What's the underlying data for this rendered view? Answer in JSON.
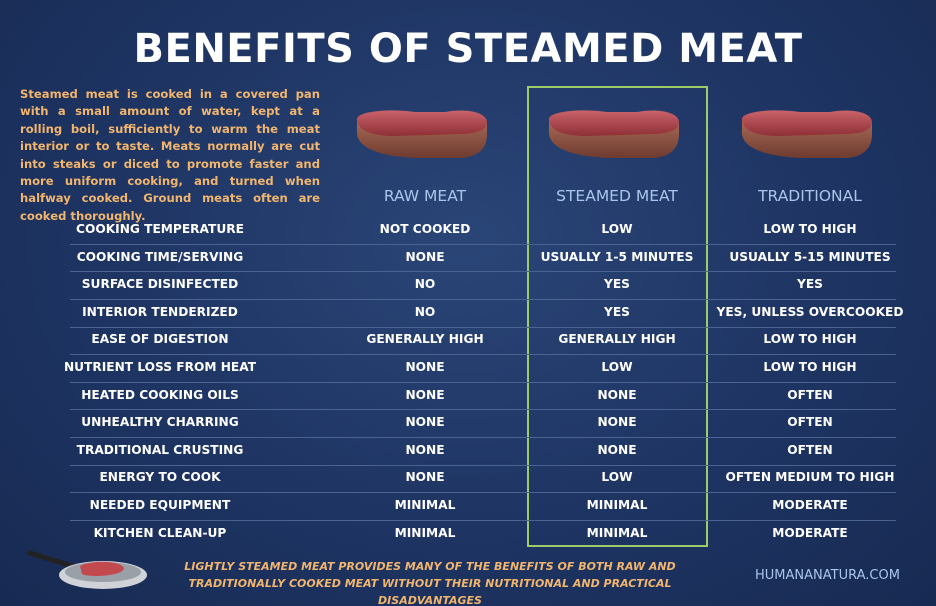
{
  "header": {
    "title": "BENEFITS OF STEAMED MEAT",
    "intro": "Steamed meat is cooked in a covered pan with a small amount of water, kept at a rolling boil, sufficiently to warm the meat interior or to taste. Meats normally are cut into steaks or diced to promote faster and more uniform cooking, and turned when halfway cooked. Ground meats often are cooked thoroughly."
  },
  "table": {
    "columns": [
      "RAW MEAT",
      "STEAMED MEAT",
      "TRADITIONAL"
    ],
    "rows": [
      {
        "label": "COOKING TEMPERATURE",
        "values": [
          "NOT COOKED",
          "LOW",
          "LOW TO HIGH"
        ]
      },
      {
        "label": "COOKING TIME/SERVING",
        "values": [
          "NONE",
          "USUALLY 1-5 MINUTES",
          "USUALLY 5-15 MINUTES"
        ]
      },
      {
        "label": "SURFACE DISINFECTED",
        "values": [
          "NO",
          "YES",
          "YES"
        ]
      },
      {
        "label": "INTERIOR TENDERIZED",
        "values": [
          "NO",
          "YES",
          "YES, UNLESS OVERCOOKED"
        ]
      },
      {
        "label": "EASE OF DIGESTION",
        "values": [
          "GENERALLY HIGH",
          "GENERALLY HIGH",
          "LOW TO HIGH"
        ]
      },
      {
        "label": "NUTRIENT LOSS FROM HEAT",
        "values": [
          "NONE",
          "LOW",
          "LOW TO HIGH"
        ]
      },
      {
        "label": "HEATED COOKING OILS",
        "values": [
          "NONE",
          "NONE",
          "OFTEN"
        ]
      },
      {
        "label": "UNHEALTHY CHARRING",
        "values": [
          "NONE",
          "NONE",
          "OFTEN"
        ]
      },
      {
        "label": "TRADITIONAL CRUSTING",
        "values": [
          "NONE",
          "NONE",
          "OFTEN"
        ]
      },
      {
        "label": "ENERGY TO COOK",
        "values": [
          "NONE",
          "LOW",
          "OFTEN MEDIUM TO HIGH"
        ]
      },
      {
        "label": "NEEDED EQUIPMENT",
        "values": [
          "MINIMAL",
          "MINIMAL",
          "MODERATE"
        ]
      },
      {
        "label": "KITCHEN CLEAN-UP",
        "values": [
          "MINIMAL",
          "MINIMAL",
          "MODERATE"
        ]
      }
    ]
  },
  "footer": {
    "note": "LIGHTLY STEAMED MEAT PROVIDES MANY OF THE BENEFITS OF BOTH RAW AND TRADITIONALLY COOKED MEAT WITHOUT THEIR NUTRITIONAL AND PRACTICAL DISADVANTAGES",
    "site": "HUMANANATURA.COM"
  }
}
